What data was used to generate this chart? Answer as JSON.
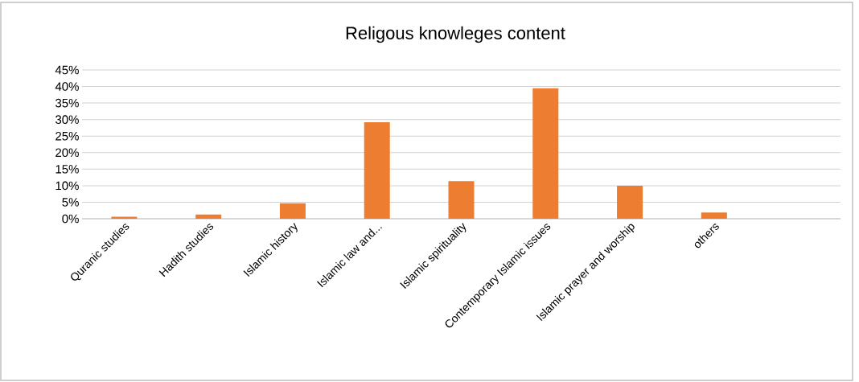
{
  "chart_data": {
    "type": "bar",
    "title": "Religous knowleges content",
    "categories": [
      "Quranic studies",
      "Hadith studies",
      "Islamic history",
      "Islamic law and...",
      "Islamic spirituality",
      "Contemporary Islamic issues",
      "Islamic prayer and worship",
      "others",
      null
    ],
    "values": [
      0.6,
      1.3,
      4.7,
      29.2,
      11.4,
      39.5,
      10,
      1.9,
      null
    ],
    "color": "#ed7d31",
    "ylim": [
      0,
      45
    ],
    "yticks": [
      {
        "value": 0,
        "label": "0%"
      },
      {
        "value": 5,
        "label": "5%"
      },
      {
        "value": 10,
        "label": "10%"
      },
      {
        "value": 15,
        "label": "15%"
      },
      {
        "value": 20,
        "label": "20%"
      },
      {
        "value": 25,
        "label": "25%"
      },
      {
        "value": 30,
        "label": "30%"
      },
      {
        "value": 35,
        "label": "35%"
      },
      {
        "value": 40,
        "label": "40%"
      },
      {
        "value": 45,
        "label": "45%"
      }
    ],
    "grid": "y"
  }
}
